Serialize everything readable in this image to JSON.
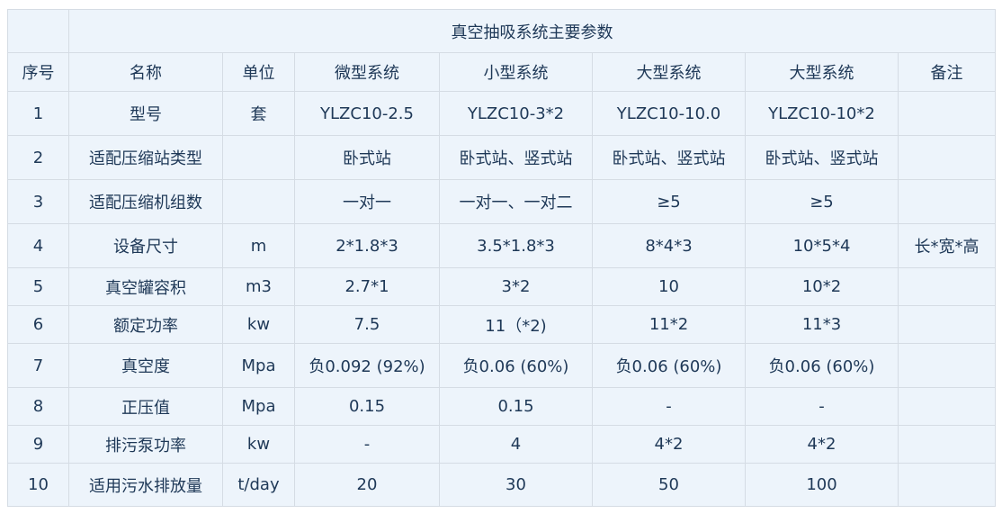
{
  "table": {
    "title": "真空抽吸系统主要参数",
    "headers": [
      "序号",
      "名称",
      "单位",
      "微型系统",
      "小型系统",
      "大型系统",
      "大型系统",
      "备注"
    ],
    "rows": [
      [
        "1",
        "型号",
        "套",
        "YLZC10-2.5",
        "YLZC10-3*2",
        "YLZC10-10.0",
        "YLZC10-10*2",
        ""
      ],
      [
        "2",
        "适配压缩站类型",
        "",
        "卧式站",
        "卧式站、竖式站",
        "卧式站、竖式站",
        "卧式站、竖式站",
        ""
      ],
      [
        "3",
        "适配压缩机组数",
        "",
        "一对一",
        "一对一、一对二",
        "≥5",
        "≥5",
        ""
      ],
      [
        "4",
        "设备尺寸",
        "m",
        "2*1.8*3",
        "3.5*1.8*3",
        "8*4*3",
        "10*5*4",
        "长*宽*高"
      ],
      [
        "5",
        "真空罐容积",
        "m3",
        "2.7*1",
        "3*2",
        "10",
        "10*2",
        ""
      ],
      [
        "6",
        "额定功率",
        "kw",
        "7.5",
        "11（*2)",
        "11*2",
        "11*3",
        ""
      ],
      [
        "7",
        "真空度",
        "Mpa",
        "负0.092 (92%)",
        "负0.06 (60%)",
        "负0.06 (60%)",
        "负0.06 (60%)",
        ""
      ],
      [
        "8",
        "正压值",
        "Mpa",
        "0.15",
        "0.15",
        "-",
        "-",
        ""
      ],
      [
        "9",
        "排污泵功率",
        "kw",
        "-",
        "4",
        "4*2",
        "4*2",
        ""
      ],
      [
        "10",
        "适用污水排放量",
        "t/day",
        "20",
        "30",
        "50",
        "100",
        ""
      ]
    ]
  }
}
